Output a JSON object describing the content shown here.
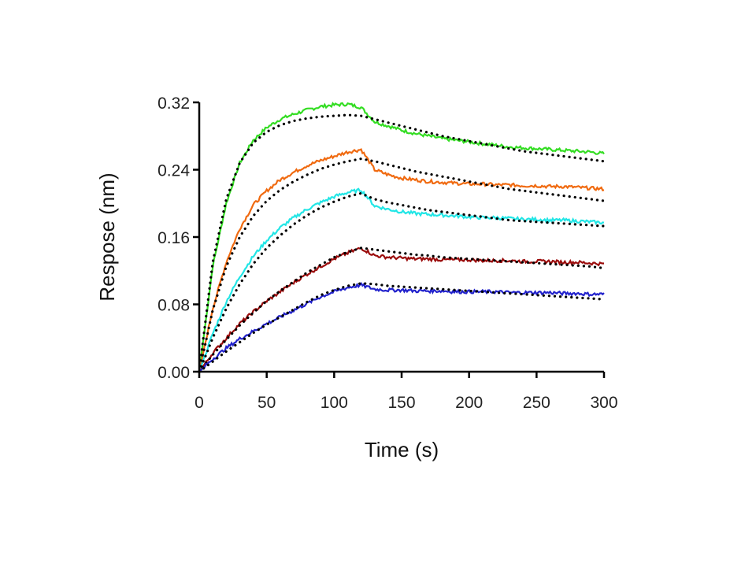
{
  "chart_data": {
    "type": "line",
    "xlabel": "Time (s)",
    "ylabel": "Respose (nm)",
    "xlim": [
      0,
      300
    ],
    "ylim": [
      0,
      0.32
    ],
    "x_ticks": [
      0,
      50,
      100,
      150,
      200,
      250,
      300
    ],
    "x_tick_labels": [
      "0",
      "50",
      "100",
      "150",
      "200",
      "250",
      "300"
    ],
    "y_ticks": [
      0,
      0.08,
      0.16,
      0.24,
      0.32
    ],
    "y_tick_labels": [
      "0.00",
      "0.08",
      "0.16",
      "0.24",
      "0.32"
    ],
    "grid": false,
    "fit_color": "#000000",
    "x": [
      0,
      10,
      20,
      30,
      40,
      50,
      60,
      70,
      80,
      90,
      100,
      110,
      120,
      130,
      140,
      150,
      160,
      170,
      180,
      190,
      200,
      210,
      220,
      230,
      240,
      250,
      260,
      270,
      280,
      290,
      300
    ],
    "series": [
      {
        "color": "#33dd22",
        "values": [
          0.0,
          0.125,
          0.2,
          0.248,
          0.275,
          0.29,
          0.3,
          0.306,
          0.311,
          0.315,
          0.317,
          0.318,
          0.314,
          0.297,
          0.292,
          0.287,
          0.283,
          0.28,
          0.277,
          0.275,
          0.273,
          0.271,
          0.269,
          0.267,
          0.266,
          0.265,
          0.264,
          0.263,
          0.262,
          0.261,
          0.259
        ],
        "fit": [
          0.0,
          0.13,
          0.205,
          0.248,
          0.272,
          0.285,
          0.293,
          0.298,
          0.301,
          0.303,
          0.304,
          0.305,
          0.304,
          0.3,
          0.296,
          0.292,
          0.288,
          0.284,
          0.28,
          0.277,
          0.274,
          0.271,
          0.268,
          0.265,
          0.262,
          0.26,
          0.258,
          0.256,
          0.254,
          0.252,
          0.25
        ]
      },
      {
        "color": "#f06a10",
        "values": [
          0.0,
          0.075,
          0.13,
          0.17,
          0.198,
          0.215,
          0.228,
          0.237,
          0.245,
          0.251,
          0.256,
          0.261,
          0.264,
          0.24,
          0.234,
          0.23,
          0.228,
          0.226,
          0.225,
          0.224,
          0.223,
          0.223,
          0.222,
          0.222,
          0.221,
          0.221,
          0.22,
          0.22,
          0.219,
          0.218,
          0.217
        ],
        "fit": [
          0.0,
          0.073,
          0.125,
          0.16,
          0.185,
          0.203,
          0.216,
          0.226,
          0.234,
          0.241,
          0.246,
          0.25,
          0.253,
          0.25,
          0.246,
          0.242,
          0.238,
          0.235,
          0.232,
          0.229,
          0.226,
          0.223,
          0.22,
          0.217,
          0.215,
          0.213,
          0.211,
          0.209,
          0.207,
          0.205,
          0.203
        ]
      },
      {
        "color": "#22e6e6",
        "values": [
          0.0,
          0.045,
          0.083,
          0.113,
          0.137,
          0.156,
          0.171,
          0.183,
          0.193,
          0.201,
          0.208,
          0.213,
          0.216,
          0.197,
          0.193,
          0.19,
          0.188,
          0.187,
          0.186,
          0.185,
          0.184,
          0.183,
          0.183,
          0.182,
          0.181,
          0.181,
          0.18,
          0.18,
          0.179,
          0.178,
          0.177
        ],
        "fit": [
          0.0,
          0.04,
          0.075,
          0.104,
          0.128,
          0.147,
          0.162,
          0.175,
          0.186,
          0.195,
          0.202,
          0.208,
          0.212,
          0.205,
          0.201,
          0.198,
          0.195,
          0.192,
          0.19,
          0.188,
          0.186,
          0.184,
          0.182,
          0.18,
          0.179,
          0.178,
          0.177,
          0.176,
          0.175,
          0.174,
          0.173
        ]
      },
      {
        "color": "#9b0c0c",
        "values": [
          0.0,
          0.022,
          0.04,
          0.057,
          0.071,
          0.084,
          0.095,
          0.106,
          0.116,
          0.125,
          0.134,
          0.141,
          0.147,
          0.138,
          0.136,
          0.135,
          0.134,
          0.134,
          0.133,
          0.133,
          0.133,
          0.132,
          0.132,
          0.132,
          0.131,
          0.131,
          0.131,
          0.13,
          0.13,
          0.129,
          0.128
        ],
        "fit": [
          0.0,
          0.02,
          0.038,
          0.055,
          0.07,
          0.084,
          0.096,
          0.107,
          0.118,
          0.127,
          0.136,
          0.142,
          0.147,
          0.145,
          0.143,
          0.141,
          0.139,
          0.138,
          0.136,
          0.135,
          0.134,
          0.133,
          0.132,
          0.131,
          0.13,
          0.129,
          0.128,
          0.127,
          0.126,
          0.125,
          0.123
        ]
      },
      {
        "color": "#2222cc",
        "values": [
          0.0,
          0.015,
          0.028,
          0.039,
          0.048,
          0.057,
          0.065,
          0.073,
          0.081,
          0.089,
          0.095,
          0.1,
          0.103,
          0.098,
          0.097,
          0.097,
          0.096,
          0.096,
          0.096,
          0.095,
          0.095,
          0.095,
          0.095,
          0.094,
          0.094,
          0.094,
          0.094,
          0.093,
          0.093,
          0.092,
          0.092
        ],
        "fit": [
          0.0,
          0.012,
          0.024,
          0.035,
          0.046,
          0.056,
          0.065,
          0.074,
          0.083,
          0.091,
          0.097,
          0.102,
          0.105,
          0.104,
          0.102,
          0.101,
          0.1,
          0.099,
          0.098,
          0.097,
          0.096,
          0.095,
          0.094,
          0.093,
          0.092,
          0.091,
          0.09,
          0.089,
          0.088,
          0.087,
          0.086
        ]
      }
    ]
  }
}
